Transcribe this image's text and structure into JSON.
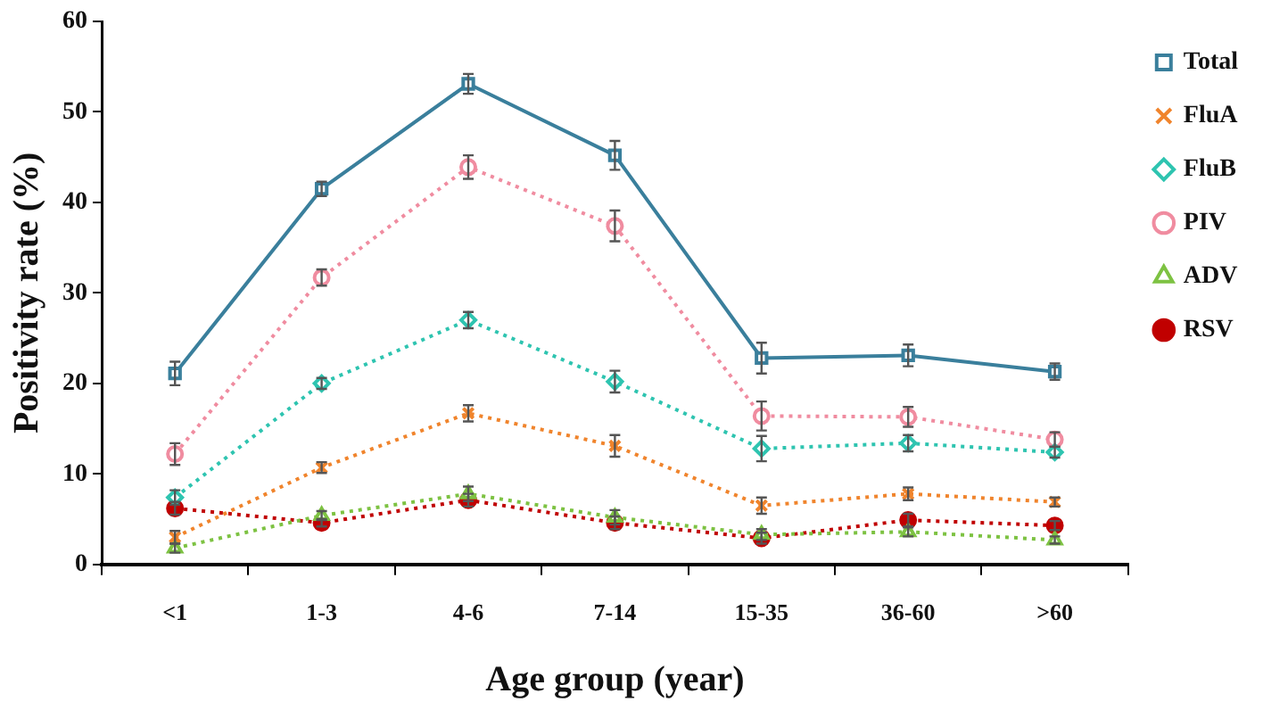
{
  "chart_data": {
    "type": "line",
    "xlabel": "Age group (year)",
    "ylabel": "Positivity rate (%)",
    "categories": [
      "<1",
      "1-3",
      "4-6",
      "7-14",
      "15-35",
      "36-60",
      ">60"
    ],
    "ylim": [
      0,
      60
    ],
    "yticks": [
      0,
      10,
      20,
      30,
      40,
      50,
      60
    ],
    "grid": false,
    "legend": "top right",
    "series": [
      {
        "name": "Total",
        "color": "#3a7f9c",
        "marker": "square",
        "line_style": "solid",
        "values": [
          21.1,
          41.5,
          53.1,
          45.2,
          22.8,
          23.1,
          21.3
        ],
        "errors": [
          1.3,
          0.8,
          1.1,
          1.6,
          1.7,
          1.2,
          0.9
        ]
      },
      {
        "name": "FluA",
        "color": "#f0842c",
        "marker": "cross",
        "line_style": "dotted",
        "values": [
          3.0,
          10.7,
          16.7,
          13.1,
          6.5,
          7.8,
          6.9
        ],
        "errors": [
          0.7,
          0.6,
          0.9,
          1.2,
          0.9,
          0.7,
          0.5
        ]
      },
      {
        "name": "FluB",
        "color": "#2ec4b0",
        "marker": "diamond",
        "line_style": "dotted",
        "values": [
          7.4,
          20.0,
          27.0,
          20.2,
          12.8,
          13.4,
          12.4
        ],
        "errors": [
          0.8,
          0.6,
          0.9,
          1.2,
          1.4,
          0.9,
          0.6
        ]
      },
      {
        "name": "PIV",
        "color": "#f08ca0",
        "marker": "circle",
        "line_style": "dotted",
        "values": [
          12.2,
          31.7,
          43.9,
          37.4,
          16.4,
          16.3,
          13.8
        ],
        "errors": [
          1.2,
          0.9,
          1.3,
          1.7,
          1.6,
          1.1,
          0.8
        ]
      },
      {
        "name": "ADV",
        "color": "#7dc242",
        "marker": "triangle",
        "line_style": "dotted",
        "values": [
          1.8,
          5.4,
          7.8,
          5.2,
          3.3,
          3.6,
          2.7
        ],
        "errors": [
          0.5,
          0.5,
          0.8,
          0.8,
          0.6,
          0.5,
          0.4
        ]
      },
      {
        "name": "RSV",
        "color": "#c00000",
        "marker": "circle",
        "line_style": "dotted",
        "values": [
          6.2,
          4.6,
          7.1,
          4.6,
          2.9,
          4.9,
          4.3
        ],
        "errors": [
          0.7,
          0.4,
          0.7,
          0.7,
          0.6,
          0.7,
          0.5
        ]
      }
    ]
  }
}
